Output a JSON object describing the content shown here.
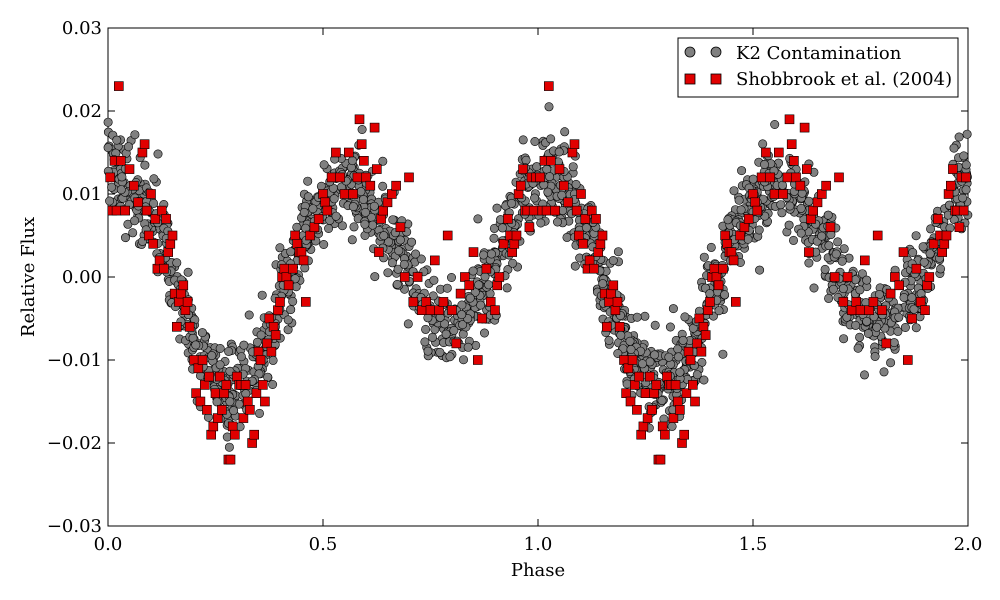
{
  "chart_data": {
    "type": "scatter",
    "xlabel": "Phase",
    "ylabel": "Relative Flux",
    "xlim": [
      0.0,
      2.0
    ],
    "ylim": [
      -0.03,
      0.03
    ],
    "x_ticks": [
      "0.0",
      "0.5",
      "1.0",
      "1.5",
      "2.0"
    ],
    "y_ticks": [
      "0.03",
      "0.02",
      "0.01",
      "0.00",
      "−0.01",
      "−0.02",
      "−0.03"
    ],
    "grid": false,
    "legend_position": "top-right",
    "series": [
      {
        "name": "K2 Contamination",
        "marker": "circle",
        "color": "#808080",
        "edge_color": "#000000",
        "model": {
          "description": "dense phase-folded light curve, period repeats every 1.0 in phase",
          "knots": [
            [
              0.0,
              0.012
            ],
            [
              0.03,
              0.012
            ],
            [
              0.07,
              0.01
            ],
            [
              0.12,
              0.005
            ],
            [
              0.17,
              -0.003
            ],
            [
              0.22,
              -0.01
            ],
            [
              0.27,
              -0.013
            ],
            [
              0.31,
              -0.013
            ],
            [
              0.36,
              -0.009
            ],
            [
              0.41,
              -0.002
            ],
            [
              0.46,
              0.006
            ],
            [
              0.53,
              0.011
            ],
            [
              0.58,
              0.01
            ],
            [
              0.63,
              0.007
            ],
            [
              0.68,
              0.003
            ],
            [
              0.73,
              -0.003
            ],
            [
              0.78,
              -0.006
            ],
            [
              0.83,
              -0.005
            ],
            [
              0.88,
              -0.001
            ],
            [
              0.93,
              0.005
            ],
            [
              0.97,
              0.01
            ],
            [
              1.0,
              0.012
            ]
          ],
          "scatter_sigma": 0.0025,
          "n_points": 2000,
          "outlier_fraction": 0.06
        }
      },
      {
        "name": "Shobbrook et al. (2004)",
        "marker": "square",
        "color": "#e00000",
        "edge_color": "#000000",
        "points_phase_0_to_1": [
          [
            0.005,
            0.012
          ],
          [
            0.01,
            0.008
          ],
          [
            0.015,
            0.014
          ],
          [
            0.02,
            0.008
          ],
          [
            0.025,
            0.023
          ],
          [
            0.03,
            0.014
          ],
          [
            0.04,
            0.008
          ],
          [
            0.05,
            0.013
          ],
          [
            0.06,
            0.011
          ],
          [
            0.07,
            0.009
          ],
          [
            0.08,
            0.015
          ],
          [
            0.085,
            0.016
          ],
          [
            0.09,
            0.008
          ],
          [
            0.095,
            0.005
          ],
          [
            0.1,
            0.01
          ],
          [
            0.105,
            0.004
          ],
          [
            0.11,
            0.007
          ],
          [
            0.115,
            0.001
          ],
          [
            0.12,
            0.002
          ],
          [
            0.125,
            0.008
          ],
          [
            0.13,
            0.001
          ],
          [
            0.135,
            0.007
          ],
          [
            0.14,
            0.003
          ],
          [
            0.145,
            0.004
          ],
          [
            0.15,
            0.005
          ],
          [
            0.155,
            -0.002
          ],
          [
            0.16,
            -0.006
          ],
          [
            0.165,
            -0.003
          ],
          [
            0.17,
            -0.002
          ],
          [
            0.175,
            -0.001
          ],
          [
            0.18,
            -0.004
          ],
          [
            0.185,
            -0.003
          ],
          [
            0.19,
            -0.006
          ],
          [
            0.2,
            -0.01
          ],
          [
            0.205,
            -0.014
          ],
          [
            0.21,
            -0.011
          ],
          [
            0.215,
            -0.015
          ],
          [
            0.22,
            -0.01
          ],
          [
            0.225,
            -0.013
          ],
          [
            0.23,
            -0.016
          ],
          [
            0.235,
            -0.012
          ],
          [
            0.24,
            -0.019
          ],
          [
            0.245,
            -0.018
          ],
          [
            0.25,
            -0.014
          ],
          [
            0.255,
            -0.017
          ],
          [
            0.26,
            -0.012
          ],
          [
            0.265,
            -0.016
          ],
          [
            0.27,
            -0.014
          ],
          [
            0.275,
            -0.013
          ],
          [
            0.28,
            -0.022
          ],
          [
            0.285,
            -0.022
          ],
          [
            0.29,
            -0.018
          ],
          [
            0.295,
            -0.019
          ],
          [
            0.3,
            -0.012
          ],
          [
            0.305,
            -0.013
          ],
          [
            0.31,
            -0.013
          ],
          [
            0.315,
            -0.017
          ],
          [
            0.32,
            -0.013
          ],
          [
            0.325,
            -0.015
          ],
          [
            0.33,
            -0.016
          ],
          [
            0.335,
            -0.02
          ],
          [
            0.34,
            -0.019
          ],
          [
            0.345,
            -0.014
          ],
          [
            0.35,
            -0.009
          ],
          [
            0.355,
            -0.01
          ],
          [
            0.36,
            -0.013
          ],
          [
            0.365,
            -0.015
          ],
          [
            0.37,
            -0.008
          ],
          [
            0.375,
            -0.005
          ],
          [
            0.38,
            -0.009
          ],
          [
            0.385,
            -0.006
          ],
          [
            0.39,
            -0.007
          ],
          [
            0.395,
            -0.004
          ],
          [
            0.4,
            -0.003
          ],
          [
            0.405,
            0.0
          ],
          [
            0.41,
            0.001
          ],
          [
            0.415,
            0.0
          ],
          [
            0.42,
            -0.001
          ],
          [
            0.43,
            0.001
          ],
          [
            0.435,
            0.005
          ],
          [
            0.44,
            0.004
          ],
          [
            0.445,
            0.003
          ],
          [
            0.45,
            0.003
          ],
          [
            0.455,
            0.002
          ],
          [
            0.46,
            -0.003
          ],
          [
            0.47,
            0.005
          ],
          [
            0.48,
            0.006
          ],
          [
            0.49,
            0.007
          ],
          [
            0.5,
            0.01
          ],
          [
            0.505,
            0.009
          ],
          [
            0.51,
            0.008
          ],
          [
            0.52,
            0.012
          ],
          [
            0.53,
            0.015
          ],
          [
            0.54,
            0.012
          ],
          [
            0.55,
            0.01
          ],
          [
            0.56,
            0.015
          ],
          [
            0.57,
            0.01
          ],
          [
            0.58,
            0.012
          ],
          [
            0.585,
            0.019
          ],
          [
            0.59,
            0.016
          ],
          [
            0.595,
            0.014
          ],
          [
            0.6,
            0.012
          ],
          [
            0.61,
            0.011
          ],
          [
            0.62,
            0.018
          ],
          [
            0.625,
            0.013
          ],
          [
            0.63,
            0.003
          ],
          [
            0.635,
            0.007
          ],
          [
            0.64,
            0.008
          ],
          [
            0.65,
            0.009
          ],
          [
            0.66,
            0.01
          ],
          [
            0.67,
            0.011
          ],
          [
            0.68,
            0.006
          ],
          [
            0.69,
            0.0
          ],
          [
            0.7,
            0.012
          ],
          [
            0.71,
            -0.003
          ],
          [
            0.72,
            0.0
          ],
          [
            0.73,
            -0.004
          ],
          [
            0.74,
            -0.003
          ],
          [
            0.75,
            -0.004
          ],
          [
            0.76,
            0.002
          ],
          [
            0.77,
            -0.004
          ],
          [
            0.78,
            -0.003
          ],
          [
            0.79,
            0.005
          ],
          [
            0.8,
            -0.004
          ],
          [
            0.81,
            -0.008
          ],
          [
            0.82,
            -0.002
          ],
          [
            0.83,
            0.0
          ],
          [
            0.84,
            -0.001
          ],
          [
            0.85,
            0.003
          ],
          [
            0.86,
            -0.01
          ],
          [
            0.87,
            -0.005
          ],
          [
            0.88,
            0.001
          ],
          [
            0.89,
            -0.003
          ],
          [
            0.9,
            -0.004
          ],
          [
            0.905,
            -0.001
          ],
          [
            0.91,
            0.0
          ],
          [
            0.92,
            0.004
          ],
          [
            0.93,
            0.007
          ],
          [
            0.935,
            0.005
          ],
          [
            0.94,
            0.003
          ],
          [
            0.945,
            0.004
          ],
          [
            0.95,
            0.005
          ],
          [
            0.955,
            0.01
          ],
          [
            0.96,
            0.011
          ],
          [
            0.965,
            0.013
          ],
          [
            0.97,
            0.008
          ],
          [
            0.975,
            0.008
          ],
          [
            0.98,
            0.006
          ],
          [
            0.985,
            0.012
          ],
          [
            0.99,
            0.008
          ],
          [
            0.995,
            0.012
          ]
        ],
        "fold_period": 1.0,
        "repeat_cycles": 2
      }
    ]
  }
}
